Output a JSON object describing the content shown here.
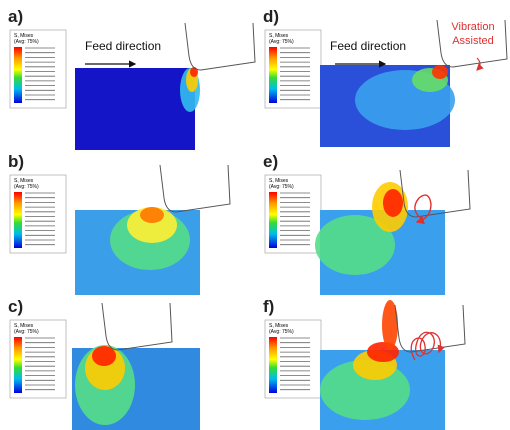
{
  "panels": [
    {
      "label": "a)",
      "legend_title": "S, Mises",
      "legend_subtitle": "(Avg: 75%)",
      "annotation": "Feed direction"
    },
    {
      "label": "b)",
      "legend_title": "S, Mises",
      "legend_subtitle": "(Avg: 75%)"
    },
    {
      "label": "c)",
      "legend_title": "S, Mises",
      "legend_subtitle": "(Avg: 75%)"
    },
    {
      "label": "d)",
      "legend_title": "S, Mises",
      "legend_subtitle": "(Avg: 75%)",
      "annotation": "Feed direction",
      "note": [
        "Vibration",
        "Assisted"
      ]
    },
    {
      "label": "e)",
      "legend_title": "S, Mises",
      "legend_subtitle": "(Avg: 75%)"
    },
    {
      "label": "f)",
      "legend_title": "S, Mises",
      "legend_subtitle": "(Avg: 75%)"
    }
  ]
}
